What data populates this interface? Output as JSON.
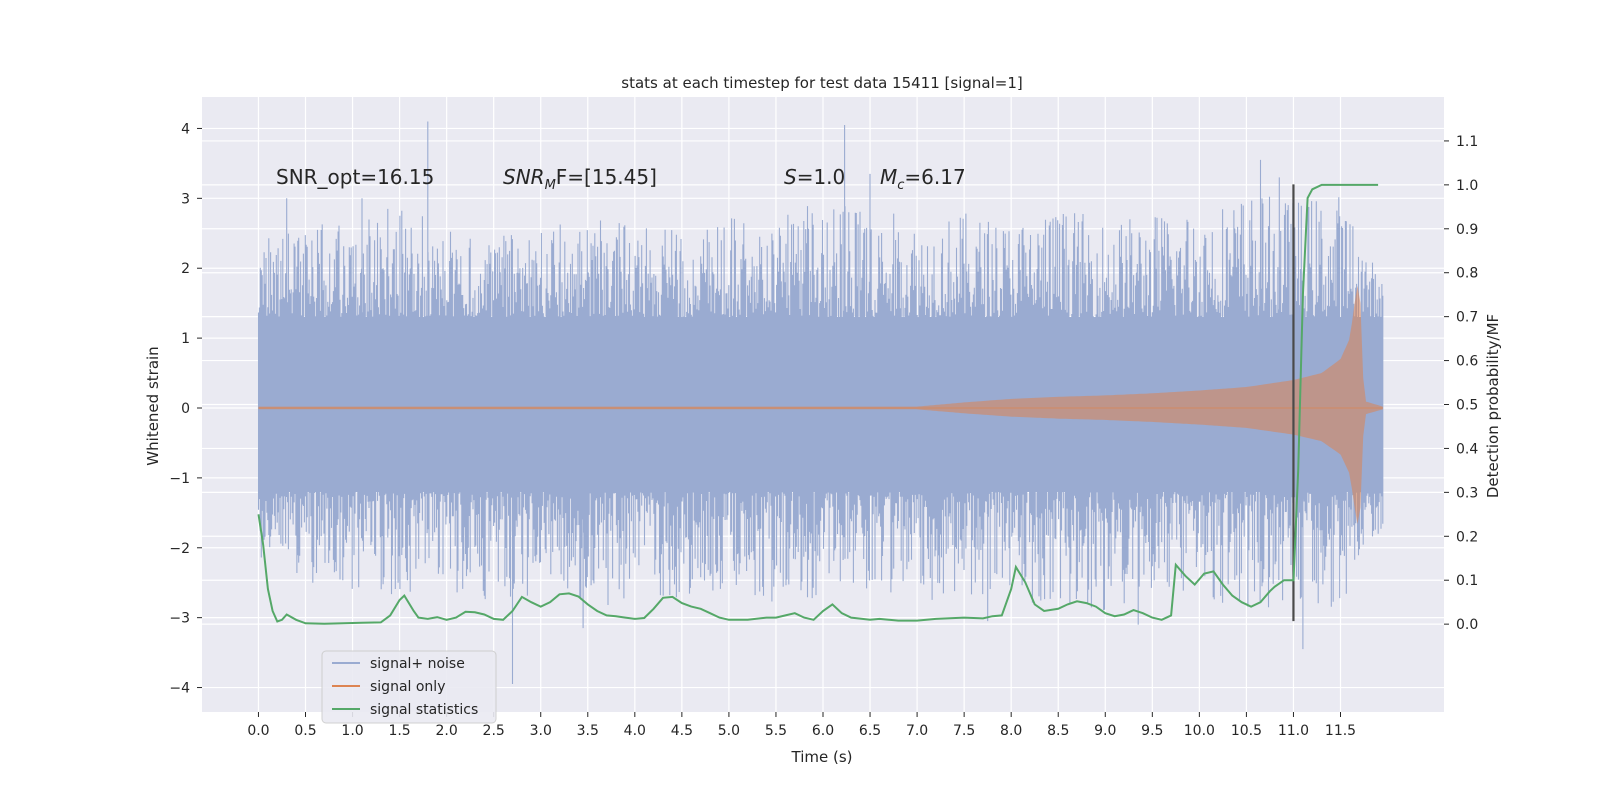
{
  "chart_data": {
    "type": "line",
    "title": "stats at each timestep for test data 15411 [signal=1]",
    "xlabel": "Time (s)",
    "ylabel": "Whitened strain",
    "ylabel_right": "Detection probability/MF",
    "xlim": [
      -0.6,
      12.6
    ],
    "ylim": [
      -4.35,
      4.45
    ],
    "ylim_right": [
      -0.2,
      1.2
    ],
    "x_ticks": [
      "0.0",
      "0.5",
      "1.0",
      "1.5",
      "2.0",
      "2.5",
      "3.0",
      "3.5",
      "4.0",
      "4.5",
      "5.0",
      "5.5",
      "6.0",
      "6.5",
      "7.0",
      "7.5",
      "8.0",
      "8.5",
      "9.0",
      "9.5",
      "10.0",
      "10.5",
      "11.0",
      "11.5"
    ],
    "y_ticks": [
      "4",
      "3",
      "2",
      "1",
      "0",
      "−1",
      "−2",
      "−3",
      "−4"
    ],
    "y_ticks_right": [
      "1.1",
      "1.0",
      "0.9",
      "0.8",
      "0.7",
      "0.6",
      "0.5",
      "0.4",
      "0.3",
      "0.2",
      "0.1",
      "0.0"
    ],
    "grid": true,
    "legend_placement": "lower-left",
    "annotations": {
      "snr_opt": "SNR_opt=16.15",
      "snr_mf_prefix": "SNR",
      "snr_mf_sub": "M",
      "snr_mf_value": "F=[15.45]",
      "s_sym": "S",
      "s_value": "=1.0",
      "mc_sym": "M",
      "mc_sub": "c",
      "mc_value": "=6.17"
    },
    "marker_line_x": 11.0,
    "signal_noise_envelope": {
      "x": [
        0.0,
        0.5,
        1.0,
        1.5,
        2.0,
        2.5,
        3.0,
        3.5,
        4.0,
        4.5,
        5.0,
        5.5,
        6.0,
        6.5,
        7.0,
        7.5,
        8.0,
        8.5,
        9.0,
        9.5,
        10.0,
        10.5,
        11.0,
        11.5,
        11.95
      ],
      "max": [
        2.5,
        2.6,
        2.7,
        2.9,
        2.6,
        2.4,
        2.7,
        2.8,
        2.6,
        2.7,
        2.8,
        2.7,
        3.0,
        2.9,
        2.7,
        2.8,
        2.7,
        2.9,
        2.7,
        2.8,
        2.9,
        3.1,
        3.0,
        3.1,
        1.8
      ],
      "min": [
        -2.2,
        -2.5,
        -2.6,
        -2.7,
        -2.6,
        -2.8,
        -2.7,
        -2.9,
        -2.8,
        -2.7,
        -2.6,
        -2.8,
        -2.7,
        -2.6,
        -2.8,
        -2.7,
        -2.9,
        -2.8,
        -2.9,
        -2.7,
        -2.8,
        -2.9,
        -2.8,
        -2.9,
        -1.7
      ],
      "band_high": 1.3,
      "band_low": -1.2,
      "peaks": [
        {
          "x": 1.8,
          "y": 4.1
        },
        {
          "x": 6.23,
          "y": 4.05
        },
        {
          "x": 0.3,
          "y": 3.0
        },
        {
          "x": 1.1,
          "y": 3.0
        },
        {
          "x": 10.65,
          "y": 3.55
        },
        {
          "x": 10.85,
          "y": 3.3
        },
        {
          "x": 6.5,
          "y": 3.35
        },
        {
          "x": 2.7,
          "y": -3.95
        },
        {
          "x": 11.1,
          "y": -3.45
        },
        {
          "x": 3.45,
          "y": -3.15
        },
        {
          "x": 9.35,
          "y": -3.1
        },
        {
          "x": 7.75,
          "y": -3.05
        }
      ]
    },
    "signal_only_envelope": {
      "x": [
        0.0,
        7.0,
        7.5,
        8.0,
        8.5,
        9.0,
        9.5,
        10.0,
        10.5,
        11.0,
        11.3,
        11.5,
        11.6,
        11.65,
        11.7,
        11.75,
        11.95
      ],
      "amp": [
        0.02,
        0.02,
        0.08,
        0.13,
        0.16,
        0.18,
        0.21,
        0.25,
        0.3,
        0.4,
        0.5,
        0.7,
        1.0,
        1.5,
        1.9,
        0.1,
        0.02
      ]
    },
    "series": [
      {
        "name": "signal statistics",
        "x": [
          0.0,
          0.05,
          0.1,
          0.15,
          0.2,
          0.25,
          0.3,
          0.4,
          0.5,
          0.7,
          0.9,
          1.1,
          1.3,
          1.4,
          1.5,
          1.55,
          1.65,
          1.7,
          1.8,
          1.9,
          2.0,
          2.1,
          2.2,
          2.3,
          2.4,
          2.5,
          2.6,
          2.7,
          2.8,
          2.9,
          3.0,
          3.1,
          3.2,
          3.3,
          3.4,
          3.5,
          3.6,
          3.7,
          3.8,
          3.9,
          4.0,
          4.1,
          4.2,
          4.3,
          4.4,
          4.5,
          4.6,
          4.7,
          4.8,
          4.9,
          5.0,
          5.2,
          5.4,
          5.5,
          5.6,
          5.7,
          5.8,
          5.9,
          6.0,
          6.1,
          6.2,
          6.3,
          6.5,
          6.6,
          6.8,
          7.0,
          7.1,
          7.2,
          7.5,
          7.7,
          7.8,
          7.9,
          8.0,
          8.05,
          8.15,
          8.25,
          8.35,
          8.5,
          8.6,
          8.7,
          8.8,
          8.9,
          9.0,
          9.1,
          9.2,
          9.3,
          9.4,
          9.5,
          9.6,
          9.7,
          9.75,
          9.85,
          9.95,
          10.05,
          10.15,
          10.25,
          10.35,
          10.45,
          10.55,
          10.65,
          10.75,
          10.8,
          10.9,
          11.0,
          11.05,
          11.1,
          11.15,
          11.2,
          11.3,
          11.5,
          11.7,
          11.9
        ],
        "values": [
          0.25,
          0.18,
          0.08,
          0.03,
          0.006,
          0.01,
          0.022,
          0.01,
          0.002,
          0.001,
          0.002,
          0.003,
          0.004,
          0.02,
          0.055,
          0.065,
          0.03,
          0.015,
          0.012,
          0.016,
          0.01,
          0.015,
          0.028,
          0.027,
          0.022,
          0.012,
          0.01,
          0.03,
          0.062,
          0.05,
          0.04,
          0.05,
          0.068,
          0.07,
          0.063,
          0.045,
          0.03,
          0.02,
          0.018,
          0.015,
          0.012,
          0.014,
          0.035,
          0.06,
          0.062,
          0.048,
          0.04,
          0.035,
          0.025,
          0.015,
          0.01,
          0.01,
          0.015,
          0.015,
          0.02,
          0.025,
          0.015,
          0.01,
          0.03,
          0.045,
          0.025,
          0.015,
          0.01,
          0.012,
          0.008,
          0.008,
          0.01,
          0.012,
          0.015,
          0.013,
          0.018,
          0.02,
          0.08,
          0.13,
          0.095,
          0.045,
          0.03,
          0.035,
          0.045,
          0.052,
          0.048,
          0.04,
          0.025,
          0.018,
          0.022,
          0.032,
          0.025,
          0.015,
          0.01,
          0.02,
          0.135,
          0.11,
          0.09,
          0.115,
          0.12,
          0.09,
          0.065,
          0.05,
          0.04,
          0.05,
          0.075,
          0.085,
          0.1,
          0.1,
          0.35,
          0.75,
          0.97,
          0.99,
          1.0,
          1.0,
          1.0,
          1.0
        ]
      }
    ],
    "legend": [
      "signal+ noise",
      "signal only",
      "signal statistics"
    ],
    "colors": {
      "signal_noise": "#9aabd1",
      "signal_only": "#dd8452",
      "signal_statistics": "#55a868",
      "plot_bg": "#eaeaf2",
      "grid": "#ffffff",
      "marker_line": "#4a4a4a"
    }
  }
}
